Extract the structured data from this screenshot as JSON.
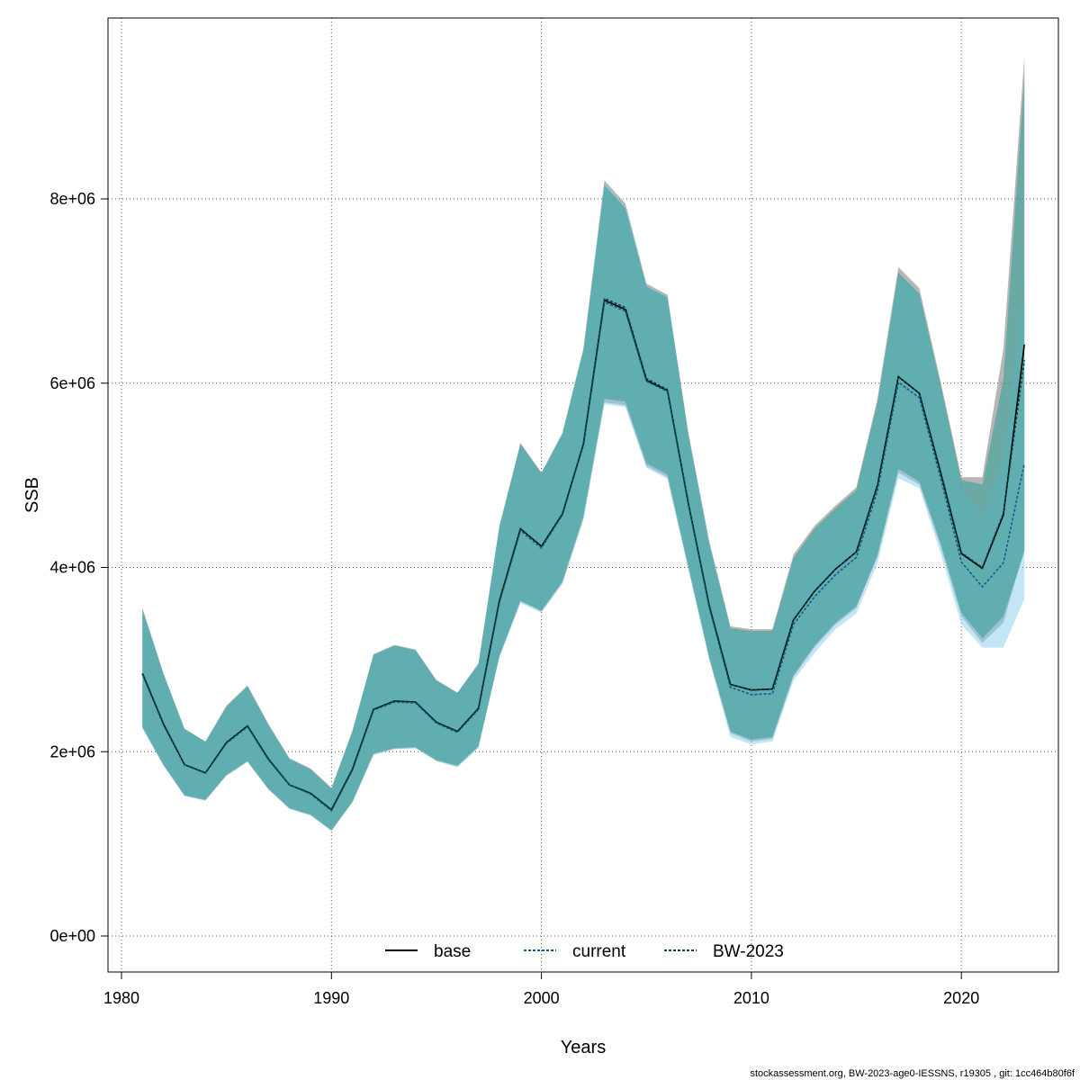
{
  "chart_data": {
    "type": "line",
    "title": "",
    "xlabel": "Years",
    "ylabel": "SSB",
    "xlim": [
      1979.5,
      2024.5
    ],
    "ylim": [
      -400000,
      9800000
    ],
    "x_ticks": [
      1980,
      1990,
      2000,
      2010,
      2020
    ],
    "x_tick_labels": [
      "1980",
      "1990",
      "2000",
      "2010",
      "2020"
    ],
    "y_ticks": [
      0,
      2000000,
      4000000,
      6000000,
      8000000
    ],
    "y_tick_labels": [
      "0e+00",
      "2e+06",
      "4e+06",
      "6e+06",
      "8e+06"
    ],
    "grid": true,
    "legend_position": "bottom",
    "footnote": "stockassessment.org, BW-2023-age0-IESSNS, r19305 , git: 1cc464b80f6f",
    "years": [
      1981,
      1982,
      1983,
      1984,
      1985,
      1986,
      1987,
      1988,
      1989,
      1990,
      1991,
      1992,
      1993,
      1994,
      1995,
      1996,
      1997,
      1998,
      1999,
      2000,
      2001,
      2002,
      2003,
      2004,
      2005,
      2006,
      2007,
      2008,
      2009,
      2010,
      2011,
      2012,
      2013,
      2014,
      2015,
      2016,
      2017,
      2018,
      2019,
      2020,
      2021,
      2022,
      2023
    ],
    "series": [
      {
        "name": "base",
        "line_color": "#000000",
        "dash": "solid",
        "band_color": "#8f8f8f",
        "values": [
          2850000,
          2300000,
          1860000,
          1770000,
          2100000,
          2280000,
          1920000,
          1640000,
          1550000,
          1370000,
          1810000,
          2460000,
          2550000,
          2540000,
          2320000,
          2220000,
          2470000,
          3640000,
          4420000,
          4230000,
          4580000,
          5340000,
          6900000,
          6800000,
          6030000,
          5920000,
          4690000,
          3580000,
          2730000,
          2670000,
          2680000,
          3430000,
          3740000,
          3980000,
          4170000,
          4890000,
          6070000,
          5890000,
          5040000,
          4150000,
          3990000,
          4570000,
          6420000
        ],
        "lower": [
          2260000,
          1850000,
          1520000,
          1470000,
          1740000,
          1890000,
          1590000,
          1380000,
          1310000,
          1140000,
          1450000,
          1970000,
          2030000,
          2040000,
          1900000,
          1840000,
          2050000,
          3030000,
          3630000,
          3520000,
          3830000,
          4530000,
          5790000,
          5760000,
          5100000,
          4980000,
          3990000,
          3000000,
          2200000,
          2110000,
          2140000,
          2810000,
          3130000,
          3380000,
          3560000,
          4110000,
          5030000,
          4900000,
          4230000,
          3470000,
          3180000,
          3400000,
          4200000
        ],
        "upper": [
          3560000,
          2850000,
          2250000,
          2110000,
          2500000,
          2720000,
          2300000,
          1930000,
          1820000,
          1610000,
          2230000,
          3060000,
          3160000,
          3110000,
          2780000,
          2640000,
          2960000,
          4450000,
          5350000,
          5030000,
          5460000,
          6380000,
          8200000,
          7950000,
          7080000,
          6960000,
          5460000,
          4280000,
          3360000,
          3330000,
          3330000,
          4140000,
          4450000,
          4670000,
          4870000,
          5830000,
          7260000,
          7030000,
          6030000,
          4980000,
          4980000,
          6370000,
          9550000
        ]
      },
      {
        "name": "current",
        "line_color": "#0d5c8c",
        "dash": "dotted",
        "band_color": "#87ceeb",
        "values": [
          2840000,
          2290000,
          1860000,
          1770000,
          2090000,
          2270000,
          1910000,
          1640000,
          1540000,
          1360000,
          1800000,
          2450000,
          2540000,
          2530000,
          2310000,
          2210000,
          2460000,
          3620000,
          4400000,
          4210000,
          4570000,
          5330000,
          6880000,
          6780000,
          6020000,
          5910000,
          4680000,
          3560000,
          2700000,
          2620000,
          2630000,
          3380000,
          3680000,
          3920000,
          4110000,
          4830000,
          6010000,
          5840000,
          4980000,
          4060000,
          3790000,
          4050000,
          5130000
        ],
        "lower": [
          2250000,
          1850000,
          1520000,
          1470000,
          1740000,
          1890000,
          1590000,
          1380000,
          1310000,
          1140000,
          1450000,
          1960000,
          2030000,
          2040000,
          1900000,
          1830000,
          2040000,
          3020000,
          3610000,
          3510000,
          3820000,
          4520000,
          5770000,
          5740000,
          5080000,
          4960000,
          3970000,
          2990000,
          2160000,
          2080000,
          2110000,
          2770000,
          3070000,
          3330000,
          3500000,
          4040000,
          4970000,
          4860000,
          4160000,
          3380000,
          3130000,
          3130000,
          3660000
        ],
        "upper": [
          3550000,
          2840000,
          2250000,
          2110000,
          2490000,
          2710000,
          2290000,
          1920000,
          1810000,
          1600000,
          2220000,
          3050000,
          3150000,
          3100000,
          2770000,
          2630000,
          2950000,
          4430000,
          5330000,
          5010000,
          5450000,
          6360000,
          8180000,
          7930000,
          7060000,
          6940000,
          5440000,
          4250000,
          3320000,
          3280000,
          3280000,
          4070000,
          4380000,
          4590000,
          4800000,
          5750000,
          7180000,
          6950000,
          5930000,
          4840000,
          4560000,
          5190000,
          7080000
        ]
      },
      {
        "name": "BW-2023",
        "line_color": "#0a3d3a",
        "dash": "dotted",
        "band_color": "#2e9f97",
        "values": [
          2850000,
          2300000,
          1860000,
          1770000,
          2100000,
          2280000,
          1920000,
          1640000,
          1550000,
          1370000,
          1810000,
          2460000,
          2550000,
          2540000,
          2320000,
          2220000,
          2470000,
          3640000,
          4420000,
          4230000,
          4580000,
          5350000,
          6920000,
          6820000,
          6050000,
          5930000,
          4700000,
          3580000,
          2730000,
          2670000,
          2680000,
          3430000,
          3740000,
          3980000,
          4170000,
          4890000,
          6070000,
          5890000,
          5050000,
          4160000,
          4000000,
          4590000,
          6250000
        ],
        "lower": [
          2270000,
          1860000,
          1530000,
          1480000,
          1750000,
          1900000,
          1600000,
          1390000,
          1320000,
          1150000,
          1460000,
          1980000,
          2040000,
          2050000,
          1910000,
          1850000,
          2060000,
          3040000,
          3640000,
          3530000,
          3850000,
          4560000,
          5830000,
          5800000,
          5130000,
          5010000,
          4010000,
          3020000,
          2220000,
          2130000,
          2160000,
          2830000,
          3150000,
          3400000,
          3580000,
          4130000,
          5070000,
          4930000,
          4270000,
          3510000,
          3230000,
          3470000,
          4170000
        ],
        "upper": [
          3540000,
          2840000,
          2250000,
          2110000,
          2490000,
          2710000,
          2290000,
          1920000,
          1810000,
          1600000,
          2220000,
          3050000,
          3150000,
          3100000,
          2770000,
          2640000,
          2950000,
          4440000,
          5340000,
          5020000,
          5450000,
          6360000,
          8150000,
          7900000,
          7050000,
          6930000,
          5440000,
          4250000,
          3340000,
          3310000,
          3310000,
          4100000,
          4420000,
          4640000,
          4840000,
          5790000,
          7200000,
          6970000,
          5990000,
          4950000,
          4900000,
          6050000,
          9320000
        ]
      }
    ]
  }
}
